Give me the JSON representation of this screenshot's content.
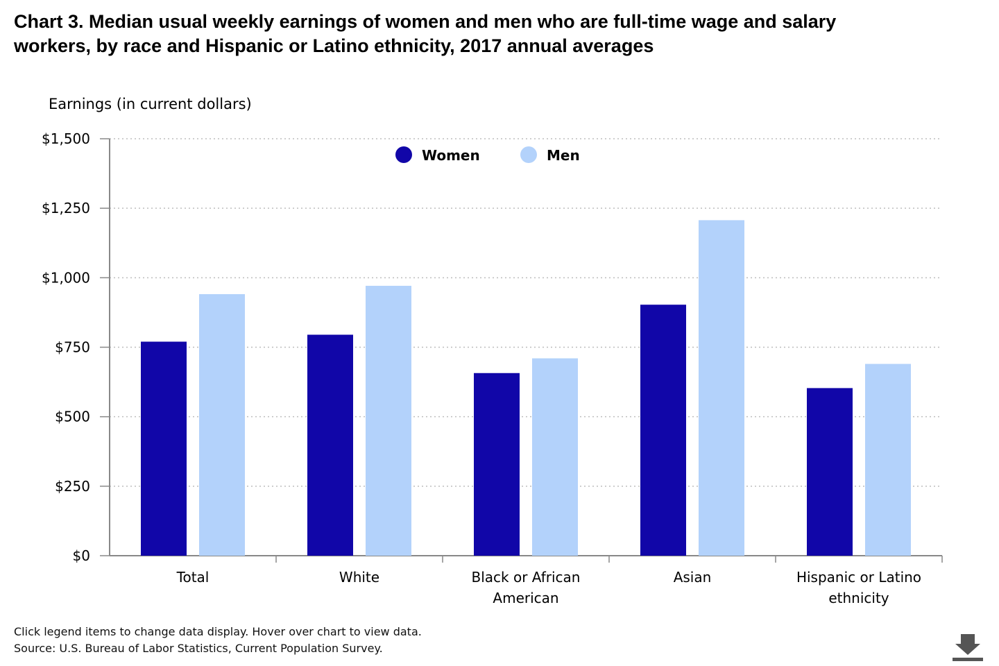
{
  "title_line1": "Chart 3. Median usual weekly earnings of women and men who are full-time wage and salary",
  "title_line2": "workers, by race and Hispanic or Latino ethnicity, 2017 annual averages",
  "footer_note": "Click legend items to change data display. Hover over chart to view data.",
  "footer_source": "Source: U.S. Bureau of Labor Statistics, Current Population Survey.",
  "download_icon": "download-icon",
  "colors": {
    "women": "#1106a8",
    "men": "#b3d2fb",
    "grid": "#bdbdbd",
    "axis": "#888888"
  },
  "chart_data": {
    "type": "bar",
    "ylabel": "Earnings (in current dollars)",
    "xlabel": "",
    "ylim": [
      0,
      1500
    ],
    "yticks": [
      0,
      250,
      500,
      750,
      1000,
      1250,
      1500
    ],
    "ytick_labels": [
      "$0",
      "$250",
      "$500",
      "$750",
      "$1,000",
      "$1,250",
      "$1,500"
    ],
    "categories": [
      [
        "Total"
      ],
      [
        "White"
      ],
      [
        "Black or African",
        "American"
      ],
      [
        "Asian"
      ],
      [
        "Hispanic or Latino",
        "ethnicity"
      ]
    ],
    "series": [
      {
        "name": "Women",
        "values": [
          770,
          795,
          657,
          903,
          603
        ]
      },
      {
        "name": "Men",
        "values": [
          941,
          971,
          710,
          1207,
          690
        ]
      }
    ],
    "grid": true,
    "legend_position": "top-center"
  }
}
